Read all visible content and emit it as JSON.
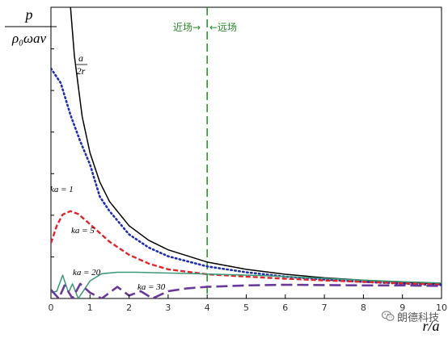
{
  "chart_data": {
    "type": "line",
    "ylabel_numerator": "p",
    "ylabel_denominator": "ρ₀ωav",
    "xlabel": "r/a",
    "xlim": [
      0,
      10
    ],
    "ylim": [
      0,
      1.0
    ],
    "x_ticks": [
      "0",
      "1",
      "2",
      "3",
      "4",
      "5",
      "6",
      "7",
      "8",
      "9",
      "10"
    ],
    "near_far_boundary_x": 4,
    "near_field_label": "近场→",
    "far_field_label": "←远场",
    "series": [
      {
        "name": "a/2r",
        "name_numerator": "a",
        "name_denominator": "2r",
        "style": "solid",
        "color": "#000000",
        "points": [
          [
            0.5,
            1.0
          ],
          [
            0.6,
            0.833
          ],
          [
            0.8,
            0.625
          ],
          [
            1.0,
            0.5
          ],
          [
            1.25,
            0.4
          ],
          [
            1.5,
            0.333
          ],
          [
            2,
            0.25
          ],
          [
            2.5,
            0.2
          ],
          [
            3,
            0.167
          ],
          [
            4,
            0.125
          ],
          [
            5,
            0.1
          ],
          [
            6,
            0.083
          ],
          [
            7,
            0.071
          ],
          [
            8,
            0.0625
          ],
          [
            9,
            0.056
          ],
          [
            10,
            0.05
          ]
        ]
      },
      {
        "name": "ka = 1",
        "style": "dotted",
        "color": "#1f2fb0",
        "points": [
          [
            0,
            0.79
          ],
          [
            0.1,
            0.77
          ],
          [
            0.25,
            0.74
          ],
          [
            0.5,
            0.63
          ],
          [
            0.75,
            0.54
          ],
          [
            1.0,
            0.46
          ],
          [
            1.25,
            0.35
          ],
          [
            1.5,
            0.3
          ],
          [
            2,
            0.22
          ],
          [
            2.5,
            0.175
          ],
          [
            3,
            0.145
          ],
          [
            4,
            0.11
          ],
          [
            5,
            0.09
          ],
          [
            6,
            0.075
          ],
          [
            7,
            0.065
          ],
          [
            8,
            0.057
          ],
          [
            9,
            0.051
          ],
          [
            10,
            0.046
          ]
        ]
      },
      {
        "name": "ka = 5",
        "style": "dashed",
        "color": "#e0262a",
        "points": [
          [
            0,
            0.19
          ],
          [
            0.15,
            0.25
          ],
          [
            0.3,
            0.288
          ],
          [
            0.5,
            0.3
          ],
          [
            0.7,
            0.29
          ],
          [
            1.0,
            0.255
          ],
          [
            1.5,
            0.195
          ],
          [
            2,
            0.15
          ],
          [
            2.5,
            0.12
          ],
          [
            3,
            0.1
          ],
          [
            4,
            0.083
          ],
          [
            5,
            0.075
          ],
          [
            6,
            0.068
          ],
          [
            7,
            0.062
          ],
          [
            8,
            0.057
          ],
          [
            9,
            0.052
          ],
          [
            10,
            0.048
          ]
        ]
      },
      {
        "name": "ka = 20",
        "style": "solid",
        "color": "#3a9a78",
        "points": [
          [
            0,
            0.02
          ],
          [
            0.15,
            0.025
          ],
          [
            0.3,
            0.08
          ],
          [
            0.45,
            0.02
          ],
          [
            0.55,
            0.05
          ],
          [
            0.7,
            0.0
          ],
          [
            1.0,
            0.06
          ],
          [
            1.3,
            0.085
          ],
          [
            1.7,
            0.09
          ],
          [
            2.2,
            0.09
          ],
          [
            2.8,
            0.088
          ],
          [
            3.5,
            0.086
          ],
          [
            4.5,
            0.082
          ],
          [
            5.5,
            0.078
          ],
          [
            6.5,
            0.072
          ],
          [
            7.5,
            0.066
          ],
          [
            8.5,
            0.06
          ],
          [
            10,
            0.053
          ]
        ]
      },
      {
        "name": "ka = 30",
        "style": "longdash",
        "color": "#6a3a9a",
        "points": [
          [
            0,
            0.03
          ],
          [
            0.2,
            0.0
          ],
          [
            0.35,
            0.045
          ],
          [
            0.55,
            0.0
          ],
          [
            0.75,
            0.05
          ],
          [
            1.0,
            0.02
          ],
          [
            1.3,
            0.0
          ],
          [
            1.7,
            0.04
          ],
          [
            2.0,
            0.01
          ],
          [
            2.3,
            0.025
          ],
          [
            2.6,
            0.0
          ],
          [
            3.0,
            0.025
          ],
          [
            3.5,
            0.035
          ],
          [
            4.0,
            0.04
          ],
          [
            5,
            0.045
          ],
          [
            6,
            0.047
          ],
          [
            7,
            0.046
          ],
          [
            8,
            0.045
          ],
          [
            9,
            0.045
          ],
          [
            10,
            0.043
          ]
        ]
      }
    ]
  },
  "watermark": {
    "text": "朗德科技",
    "icon": "wechat-icon"
  }
}
